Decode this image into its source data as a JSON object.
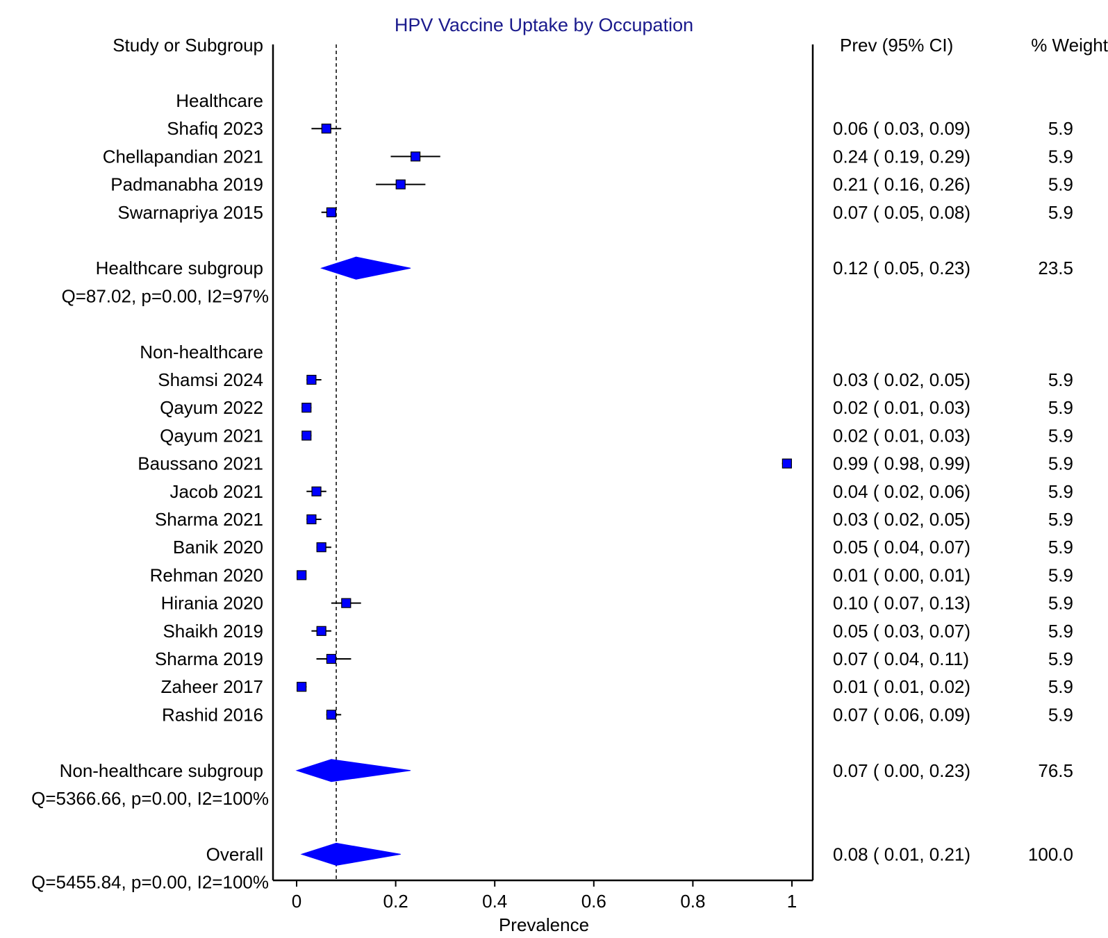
{
  "chart_data": {
    "type": "forest",
    "title": "HPV Vaccine Uptake by Occupation",
    "xlabel": "Prevalence",
    "xlim": [
      0,
      1
    ],
    "xticks": [
      "0",
      "0.2",
      "0.4",
      "0.6",
      "0.8",
      "1"
    ],
    "xtick_values": [
      0,
      0.2,
      0.4,
      0.6,
      0.8,
      1
    ],
    "reference_line": 0.08,
    "header": {
      "study": "Study or Subgroup",
      "prev": "Prev (95% CI)",
      "weight": "% Weight"
    },
    "colors": {
      "marker": "#0000ff",
      "title": "#1a1a8c"
    },
    "rows": [
      {
        "type": "header",
        "label": "Healthcare"
      },
      {
        "type": "study",
        "label": "Shafiq 2023",
        "est": 0.06,
        "lo": 0.03,
        "hi": 0.09,
        "ci": "0.06  (  0.03,  0.09)",
        "weight": "5.9"
      },
      {
        "type": "study",
        "label": "Chellapandian 2021",
        "est": 0.24,
        "lo": 0.19,
        "hi": 0.29,
        "ci": "0.24  (  0.19,  0.29)",
        "weight": "5.9"
      },
      {
        "type": "study",
        "label": "Padmanabha 2019",
        "est": 0.21,
        "lo": 0.16,
        "hi": 0.26,
        "ci": "0.21  (  0.16,  0.26)",
        "weight": "5.9"
      },
      {
        "type": "study",
        "label": "Swarnapriya 2015",
        "est": 0.07,
        "lo": 0.05,
        "hi": 0.08,
        "ci": "0.07  (  0.05,  0.08)",
        "weight": "5.9"
      },
      {
        "type": "blank"
      },
      {
        "type": "subgroup",
        "label": "Healthcare subgroup",
        "est": 0.12,
        "lo": 0.05,
        "hi": 0.23,
        "ci": "0.12  (  0.05,  0.23)",
        "weight": "23.5"
      },
      {
        "type": "stats",
        "label": "Q=87.02, p=0.00, I2=97%"
      },
      {
        "type": "blank"
      },
      {
        "type": "header",
        "label": "Non-healthcare"
      },
      {
        "type": "study",
        "label": "Shamsi 2024",
        "est": 0.03,
        "lo": 0.02,
        "hi": 0.05,
        "ci": "0.03  (  0.02,  0.05)",
        "weight": "5.9"
      },
      {
        "type": "study",
        "label": "Qayum 2022",
        "est": 0.02,
        "lo": 0.01,
        "hi": 0.03,
        "ci": "0.02  (  0.01,  0.03)",
        "weight": "5.9"
      },
      {
        "type": "study",
        "label": "Qayum 2021",
        "est": 0.02,
        "lo": 0.01,
        "hi": 0.03,
        "ci": "0.02  (  0.01,  0.03)",
        "weight": "5.9"
      },
      {
        "type": "study",
        "label": "Baussano 2021",
        "est": 0.99,
        "lo": 0.98,
        "hi": 0.99,
        "ci": "0.99  (  0.98,  0.99)",
        "weight": "5.9"
      },
      {
        "type": "study",
        "label": "Jacob 2021",
        "est": 0.04,
        "lo": 0.02,
        "hi": 0.06,
        "ci": "0.04  (  0.02,  0.06)",
        "weight": "5.9"
      },
      {
        "type": "study",
        "label": "Sharma 2021",
        "est": 0.03,
        "lo": 0.02,
        "hi": 0.05,
        "ci": "0.03  (  0.02,  0.05)",
        "weight": "5.9"
      },
      {
        "type": "study",
        "label": "Banik 2020",
        "est": 0.05,
        "lo": 0.04,
        "hi": 0.07,
        "ci": "0.05  (  0.04,  0.07)",
        "weight": "5.9"
      },
      {
        "type": "study",
        "label": "Rehman 2020",
        "est": 0.01,
        "lo": 0.0,
        "hi": 0.01,
        "ci": "0.01  (  0.00,  0.01)",
        "weight": "5.9"
      },
      {
        "type": "study",
        "label": "Hirania 2020",
        "est": 0.1,
        "lo": 0.07,
        "hi": 0.13,
        "ci": "0.10  (  0.07,  0.13)",
        "weight": "5.9"
      },
      {
        "type": "study",
        "label": "Shaikh 2019",
        "est": 0.05,
        "lo": 0.03,
        "hi": 0.07,
        "ci": "0.05  (  0.03,  0.07)",
        "weight": "5.9"
      },
      {
        "type": "study",
        "label": "Sharma 2019",
        "est": 0.07,
        "lo": 0.04,
        "hi": 0.11,
        "ci": "0.07  (  0.04,  0.11)",
        "weight": "5.9"
      },
      {
        "type": "study",
        "label": "Zaheer 2017",
        "est": 0.01,
        "lo": 0.01,
        "hi": 0.02,
        "ci": "0.01  (  0.01,  0.02)",
        "weight": "5.9"
      },
      {
        "type": "study",
        "label": "Rashid 2016",
        "est": 0.07,
        "lo": 0.06,
        "hi": 0.09,
        "ci": "0.07  (  0.06,  0.09)",
        "weight": "5.9"
      },
      {
        "type": "blank"
      },
      {
        "type": "subgroup",
        "label": "Non-healthcare subgroup",
        "est": 0.07,
        "lo": 0.0,
        "hi": 0.23,
        "ci": "0.07  (  0.00,  0.23)",
        "weight": "76.5"
      },
      {
        "type": "stats",
        "label": "Q=5366.66, p=0.00, I2=100%"
      },
      {
        "type": "blank"
      },
      {
        "type": "subgroup",
        "label": "Overall",
        "est": 0.08,
        "lo": 0.01,
        "hi": 0.21,
        "ci": "0.08  (  0.01,  0.21)",
        "weight": "100.0"
      },
      {
        "type": "stats",
        "label": "Q=5455.84, p=0.00, I2=100%"
      }
    ]
  }
}
